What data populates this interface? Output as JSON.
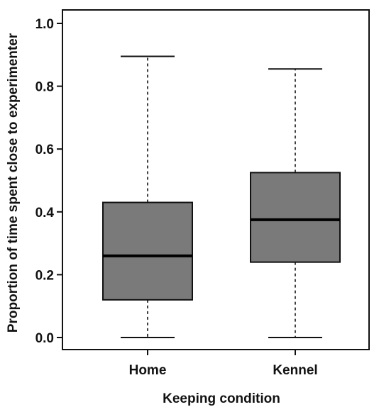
{
  "chart_data": {
    "type": "box",
    "xlabel": "Keeping condition",
    "ylabel": "Proportion of time spent close to experimenter",
    "ylim": [
      0.0,
      1.0
    ],
    "yticks": [
      "0.0",
      "0.2",
      "0.4",
      "0.6",
      "0.8",
      "1.0"
    ],
    "categories": [
      "Home",
      "Kennel"
    ],
    "boxes": [
      {
        "category": "Home",
        "min": 0.0,
        "q1": 0.12,
        "median": 0.26,
        "q3": 0.43,
        "max": 0.895
      },
      {
        "category": "Kennel",
        "min": 0.0,
        "q1": 0.24,
        "median": 0.375,
        "q3": 0.525,
        "max": 0.855
      }
    ],
    "box_color": "#7a7a7a",
    "grid": false
  }
}
